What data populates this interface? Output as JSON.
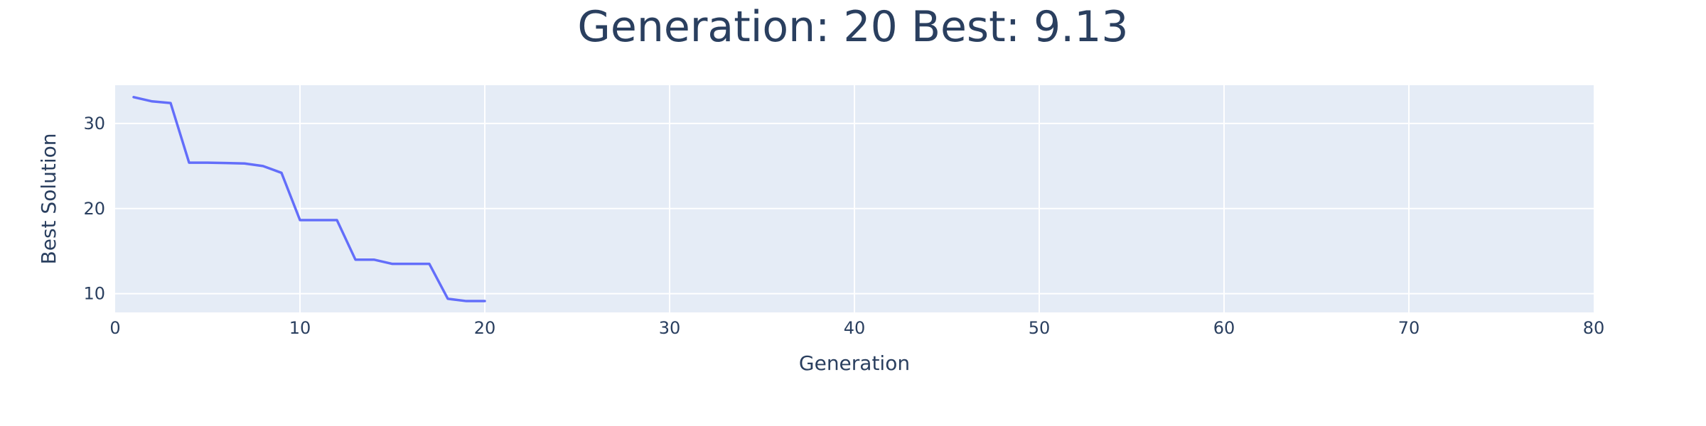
{
  "chart_data": {
    "type": "line",
    "title": "Generation: 20 Best: 9.13",
    "xlabel": "Generation",
    "ylabel": "Best Solution",
    "xlim": [
      0,
      80
    ],
    "ylim": [
      7.8,
      34.5
    ],
    "x_ticks": [
      0,
      10,
      20,
      30,
      40,
      50,
      60,
      70,
      80
    ],
    "y_ticks": [
      10,
      20,
      30
    ],
    "grid": true,
    "legend": "none",
    "colors": {
      "plot_background": "#E5ECF6",
      "series": "#636EFA",
      "text": "#2a3f5f",
      "grid": "#ffffff"
    },
    "series": [
      {
        "x": [
          1,
          2,
          3,
          4,
          5,
          6,
          7,
          8,
          9,
          10,
          11,
          12,
          13,
          14,
          15,
          16,
          17,
          18,
          19,
          20
        ],
        "y": [
          33.1,
          32.6,
          32.4,
          25.4,
          25.4,
          25.35,
          25.3,
          25.0,
          24.2,
          18.65,
          18.65,
          18.65,
          14.0,
          14.0,
          13.5,
          13.5,
          13.5,
          9.4,
          9.13,
          9.13
        ]
      }
    ]
  }
}
